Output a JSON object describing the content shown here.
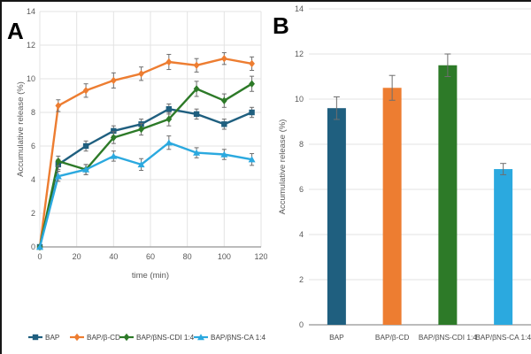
{
  "figure": {
    "background": "#FFFFFF",
    "border_color": "#161616",
    "gridline_color": "#E3E3E3",
    "axis_line_color": "#A6A6A6",
    "tick_text_color": "#595959",
    "error_bar_color": "#6E6E6E"
  },
  "chart_data": [
    {
      "type": "line",
      "panel_label": "A",
      "title": "",
      "xlabel": "time (min)",
      "ylabel": "Accumulative release (%)",
      "xlim": [
        0,
        120
      ],
      "xticks": [
        0,
        20,
        40,
        60,
        80,
        100,
        120
      ],
      "ylim": [
        0,
        14
      ],
      "yticks": [
        0,
        2,
        4,
        6,
        8,
        10,
        12,
        14
      ],
      "grid": "horizontal and vertical",
      "legend_position": "bottom",
      "x": [
        0,
        10,
        25,
        40,
        55,
        70,
        85,
        100,
        115
      ],
      "series": [
        {
          "name": "BAP",
          "color": "#1F5F7F",
          "marker": "square",
          "values": [
            0,
            4.9,
            6.0,
            6.9,
            7.3,
            8.2,
            7.9,
            7.3,
            8.0
          ],
          "errors": [
            0,
            0.3,
            0.3,
            0.3,
            0.3,
            0.3,
            0.3,
            0.3,
            0.3
          ]
        },
        {
          "name": "BAP/β-CD",
          "color": "#ED7D31",
          "marker": "diamond",
          "values": [
            0,
            8.4,
            9.3,
            9.9,
            10.3,
            11.0,
            10.8,
            11.2,
            10.9
          ],
          "errors": [
            0,
            0.35,
            0.4,
            0.45,
            0.4,
            0.45,
            0.4,
            0.35,
            0.4
          ]
        },
        {
          "name": "BAP/βNS-CDI 1:4",
          "color": "#2D7A28",
          "marker": "diamond",
          "values": [
            0,
            5.1,
            4.6,
            6.5,
            7.0,
            7.6,
            9.4,
            8.7,
            9.7
          ],
          "errors": [
            0,
            0.3,
            0.3,
            0.35,
            0.35,
            0.4,
            0.45,
            0.4,
            0.45
          ]
        },
        {
          "name": "BAP/βNS-CA 1:4",
          "color": "#2BA9DF",
          "marker": "triangle",
          "values": [
            0,
            4.2,
            4.6,
            5.4,
            4.9,
            6.2,
            5.6,
            5.5,
            5.2
          ],
          "errors": [
            0,
            0.3,
            0.3,
            0.3,
            0.35,
            0.4,
            0.3,
            0.3,
            0.35
          ]
        }
      ]
    },
    {
      "type": "bar",
      "panel_label": "B",
      "title": "",
      "xlabel": "",
      "ylabel": "Accumulative release (%)",
      "categories": [
        "BAP",
        "BAP/β-CD",
        "BAP/βNS-CDI 1:4",
        "BAP/βNS-CA 1:4"
      ],
      "values": [
        9.6,
        10.5,
        11.5,
        6.9
      ],
      "errors": [
        0.5,
        0.55,
        0.5,
        0.25
      ],
      "bar_colors": [
        "#1F5F7F",
        "#ED7D31",
        "#2D7A28",
        "#2BA9DF"
      ],
      "ylim": [
        0,
        14
      ],
      "yticks": [
        0,
        2,
        4,
        6,
        8,
        10,
        12,
        14
      ],
      "grid": "horizontal"
    }
  ]
}
